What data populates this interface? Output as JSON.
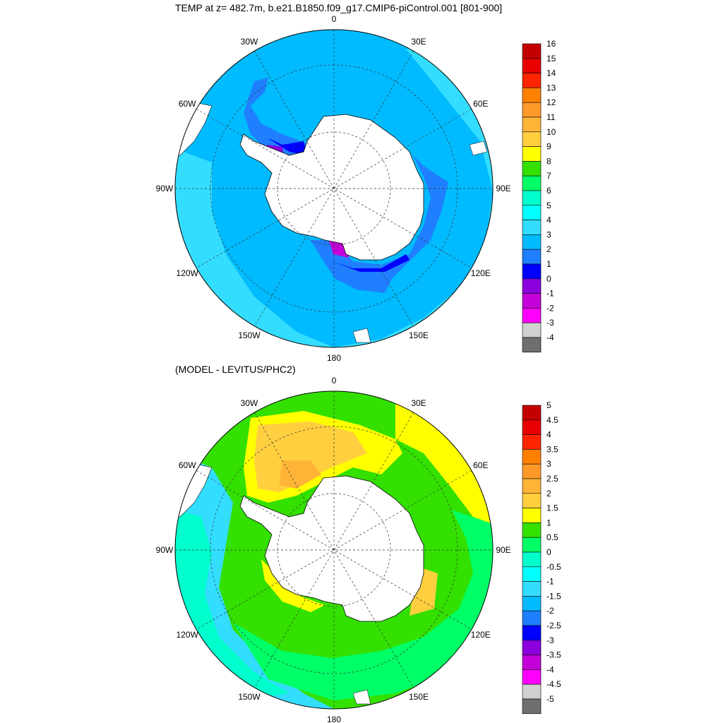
{
  "header": {
    "title": "TEMP at z= 482.7m, b.e21.B1850.f09_g17.CMIP6-piControl.001 [801-900]",
    "subtitle": "(MODEL - LEVITUS/PHC2)"
  },
  "map": {
    "projection": "polar stereographic (south pole)",
    "longitude_labels": [
      "0",
      "30E",
      "60E",
      "90E",
      "120E",
      "150E",
      "180",
      "150W",
      "120W",
      "90W",
      "60W",
      "30W"
    ],
    "continent": "Antarctica"
  },
  "top_panel": {
    "colorbar": {
      "labels": [
        "16",
        "15",
        "14",
        "13",
        "12",
        "11",
        "10",
        "9",
        "8",
        "7",
        "6",
        "5",
        "4",
        "3",
        "2",
        "1",
        "0",
        "-1",
        "-2",
        "-3",
        "-4"
      ],
      "colors": [
        "#c40000",
        "#e80000",
        "#ff2400",
        "#ff8000",
        "#ff9a2a",
        "#ffb437",
        "#ffcf40",
        "#ffff00",
        "#33e000",
        "#00ff66",
        "#00ffcc",
        "#00ffff",
        "#33ddff",
        "#00bbff",
        "#1f7fff",
        "#0000ff",
        "#8b00dd",
        "#c400d9",
        "#ff00ff",
        "#d0d0d0",
        "#6e6e6e"
      ]
    }
  },
  "bottom_panel": {
    "colorbar": {
      "labels": [
        "5",
        "4.5",
        "4",
        "3.5",
        "3",
        "2.5",
        "2",
        "1.5",
        "1",
        "0.5",
        "0",
        "-0.5",
        "-1",
        "-1.5",
        "-2",
        "-2.5",
        "-3",
        "-3.5",
        "-4",
        "-4.5",
        "-5"
      ],
      "colors": [
        "#c40000",
        "#e80000",
        "#ff2400",
        "#ff8000",
        "#ff9a2a",
        "#ffb437",
        "#ffcf40",
        "#ffff00",
        "#33e000",
        "#00ff66",
        "#00ffcc",
        "#00ffff",
        "#33ddff",
        "#00bbff",
        "#1f7fff",
        "#0000ff",
        "#8b00dd",
        "#c400d9",
        "#ff00ff",
        "#d0d0d0",
        "#6e6e6e"
      ]
    }
  }
}
